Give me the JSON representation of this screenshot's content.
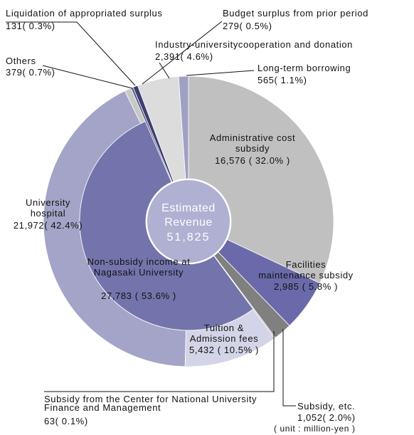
{
  "chart_data": {
    "type": "sunburst",
    "center_title": "Estimated Revenue",
    "total": 51825,
    "total_label": "51,825",
    "unit": "( unit : million-yen )",
    "segments": [
      {
        "name": "Administrative cost subsidy",
        "value": 16576,
        "value_label": "16,576 ( 32.0% )",
        "color": "#c0c0c0"
      },
      {
        "name": "Facilities maintenance subsidy",
        "value": 2985,
        "value_label": "2,985 ( 5.8% )",
        "color": "#6a6aaa"
      },
      {
        "name": "Subsidy, etc.",
        "value": 1052,
        "value_label": "1,052( 2.0%)",
        "color": "#808080"
      },
      {
        "name": "Subsidy from the Center for National University Finance and Management",
        "value": 63,
        "value_label": "63( 0.1%)",
        "color": "#9090b4"
      },
      {
        "name": "Tuition & Admission fees",
        "value": 5432,
        "value_label": "5,432 ( 10.5% )",
        "color": "#d4d4e8"
      },
      {
        "name": "University hospital",
        "value": 21972,
        "value_label": "21,972( 42.4%)",
        "color": "#a4a4c8"
      },
      {
        "name": "Others",
        "value": 379,
        "value_label": "379( 0.7%)",
        "color": "#c8c8c8"
      },
      {
        "name": "Liquidation of appropriated surplus",
        "value": 131,
        "value_label": "131( 0.3%)",
        "color": "#5a5a8c"
      },
      {
        "name": "Budget surplus from prior period",
        "value": 279,
        "value_label": "279( 0.5%)",
        "color": "#3e3e70"
      },
      {
        "name": "Industry-universitycooperation and donation",
        "value": 2391,
        "value_label": "2,391( 4.6%)",
        "color": "#dcdcdc"
      },
      {
        "name": "Long-term borrowing",
        "value": 565,
        "value_label": "565( 1.1%)",
        "color": "#a0a0c4"
      }
    ],
    "group": {
      "name": "Non-subsidy income at Nagasaki University",
      "value": 27783,
      "value_label": "27,783 ( 53.6% )",
      "color": "#7474ac"
    }
  }
}
